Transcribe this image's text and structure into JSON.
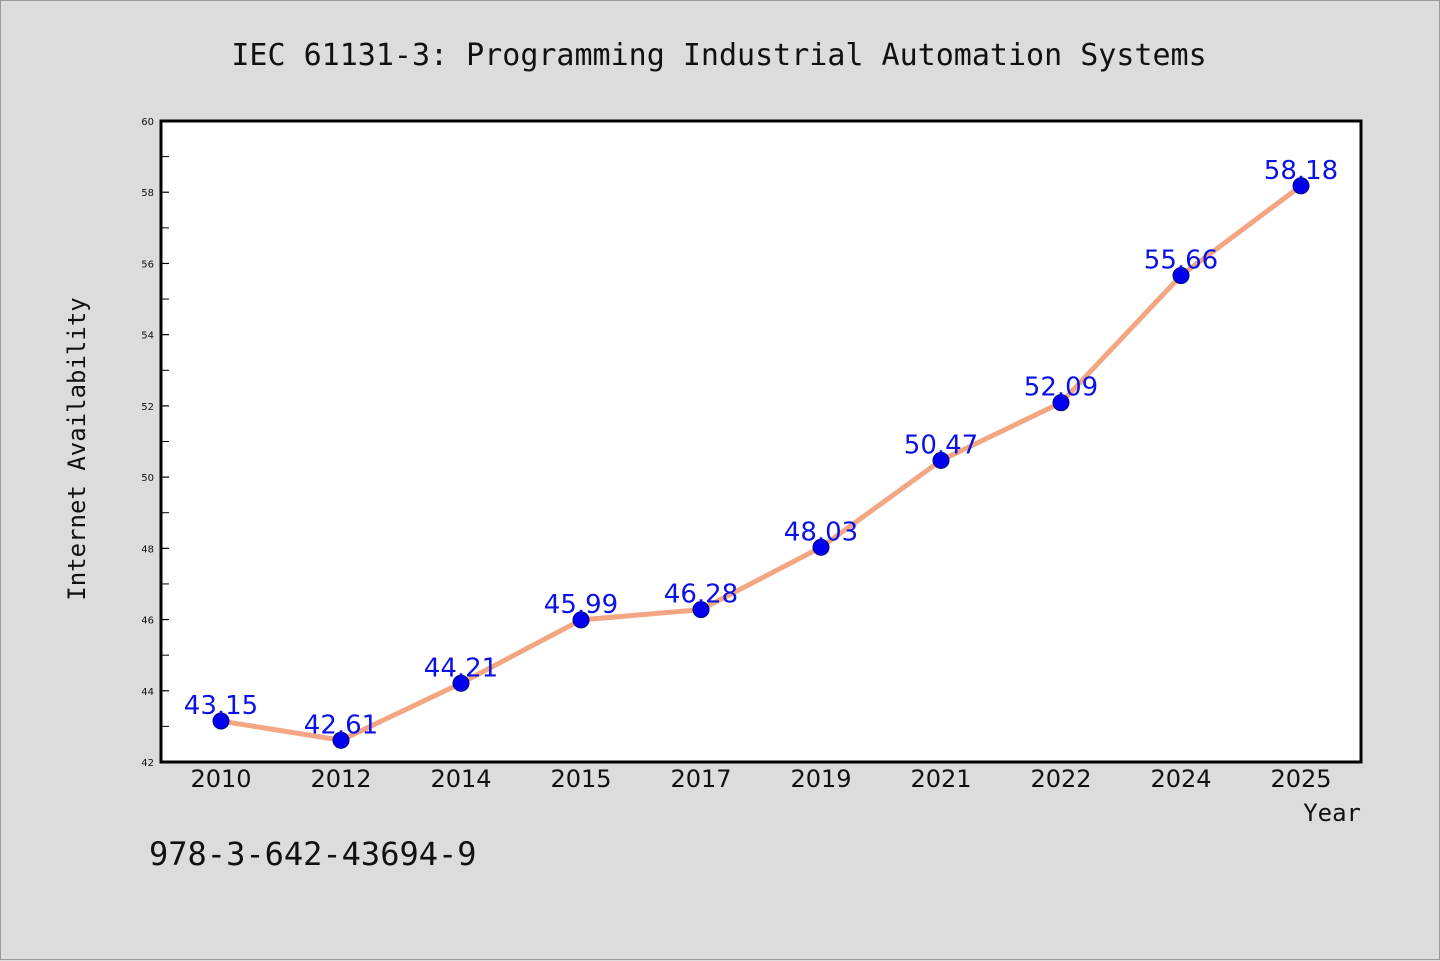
{
  "chart_data": {
    "type": "line",
    "title": "IEC 61131-3: Programming Industrial Automation Systems",
    "xlabel": "Year",
    "ylabel": "Internet Availability",
    "categories": [
      "2010",
      "2012",
      "2014",
      "2015",
      "2017",
      "2019",
      "2021",
      "2022",
      "2024",
      "2025"
    ],
    "values": [
      43.15,
      42.61,
      44.21,
      45.99,
      46.28,
      48.03,
      50.47,
      52.09,
      55.66,
      58.18
    ],
    "data_labels": [
      "43.15",
      "42.61",
      "44.21",
      "45.99",
      "46.28",
      "48.03",
      "50.47",
      "52.09",
      "55.66",
      "58.18"
    ],
    "ylim": [
      42,
      60
    ],
    "yticks": [
      42,
      44,
      46,
      48,
      50,
      52,
      54,
      56,
      58,
      60
    ],
    "grid": false,
    "line_color": "#f4a582",
    "marker_color": "#0000ee",
    "label_color": "#0a12e6",
    "background": "#dcdcdc",
    "plot_background": "#ffffff"
  },
  "footer": {
    "isbn": "978-3-642-43694-9"
  }
}
